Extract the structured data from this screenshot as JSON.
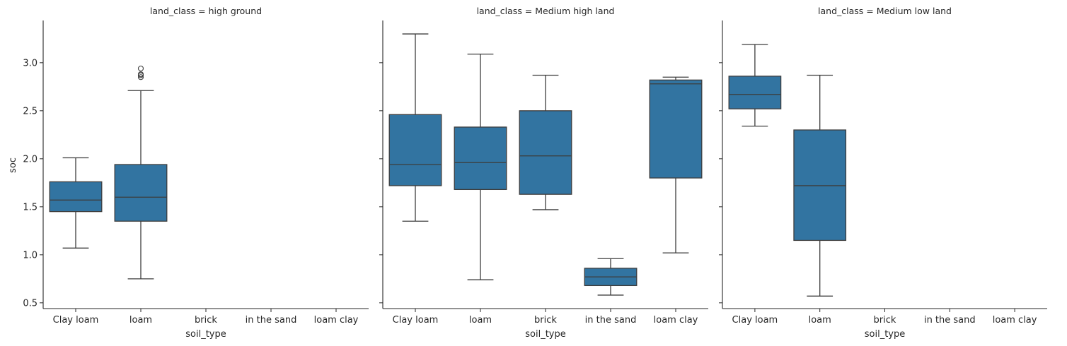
{
  "colors": {
    "box_fill": "#3274a1",
    "line": "#3d3d3d",
    "axis": "#262626"
  },
  "chart_data": {
    "type": "box",
    "facet_variable": "land_class",
    "xlabel": "soil_type",
    "ylabel": "soc",
    "categories": [
      "Clay loam",
      "loam",
      "brick",
      "in the sand",
      "loam clay"
    ],
    "ylim": [
      0.44,
      3.44
    ],
    "yticks": [
      0.5,
      1.0,
      1.5,
      2.0,
      2.5,
      3.0
    ],
    "ytick_labels": [
      "0.5",
      "1.0",
      "1.5",
      "2.0",
      "2.5",
      "3.0"
    ],
    "grid": false,
    "legend": "none",
    "panels": [
      {
        "title": "land_class = high ground",
        "boxes": [
          {
            "category": "Clay loam",
            "whislo": 1.07,
            "q1": 1.45,
            "med": 1.57,
            "q3": 1.76,
            "whishi": 2.01,
            "fliers": []
          },
          {
            "category": "loam",
            "whislo": 0.75,
            "q1": 1.35,
            "med": 1.6,
            "q3": 1.94,
            "whishi": 2.71,
            "fliers": [
              2.85,
              2.87,
              2.88,
              2.94
            ]
          }
        ]
      },
      {
        "title": "land_class = Medium high land",
        "boxes": [
          {
            "category": "Clay loam",
            "whislo": 1.35,
            "q1": 1.72,
            "med": 1.94,
            "q3": 2.46,
            "whishi": 3.3,
            "fliers": []
          },
          {
            "category": "loam",
            "whislo": 0.74,
            "q1": 1.68,
            "med": 1.96,
            "q3": 2.33,
            "whishi": 3.09,
            "fliers": []
          },
          {
            "category": "brick",
            "whislo": 1.47,
            "q1": 1.63,
            "med": 2.03,
            "q3": 2.5,
            "whishi": 2.87,
            "fliers": []
          },
          {
            "category": "in the sand",
            "whislo": 0.58,
            "q1": 0.68,
            "med": 0.77,
            "q3": 0.86,
            "whishi": 0.96,
            "fliers": []
          },
          {
            "category": "loam clay",
            "whislo": 1.02,
            "q1": 1.8,
            "med": 2.78,
            "q3": 2.82,
            "whishi": 2.85,
            "fliers": []
          }
        ]
      },
      {
        "title": "land_class = Medium low land",
        "boxes": [
          {
            "category": "Clay loam",
            "whislo": 2.34,
            "q1": 2.52,
            "med": 2.67,
            "q3": 2.86,
            "whishi": 3.19,
            "fliers": []
          },
          {
            "category": "loam",
            "whislo": 0.57,
            "q1": 1.15,
            "med": 1.72,
            "q3": 2.3,
            "whishi": 2.87,
            "fliers": []
          }
        ]
      }
    ]
  }
}
